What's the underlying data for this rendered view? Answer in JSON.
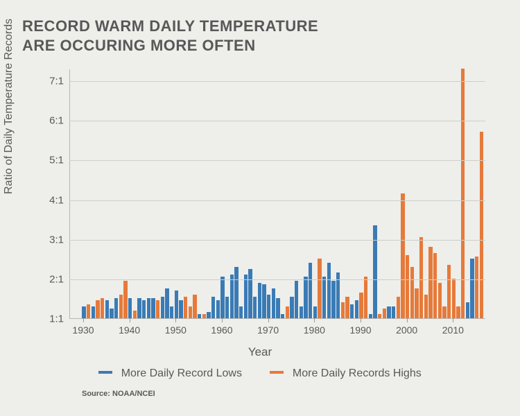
{
  "title_line1": "RECORD WARM DAILY TEMPERATURE",
  "title_line2": "ARE OCCURING MORE OFTEN",
  "ylabel": "Ratio of Daily Temperature Records",
  "xlabel": "Year",
  "source": "Source: NOAA/NCEI",
  "legend": {
    "lows": "More Daily Record Lows",
    "highs": "More Daily Records Highs"
  },
  "chart": {
    "type": "bar",
    "background_color": "#eeeeea",
    "grid_color": "#cfcfc9",
    "axis_color": "#b8b8b2",
    "title_fontsize": 22,
    "label_fontsize": 16,
    "tick_fontsize": 14,
    "x": {
      "min": 1927,
      "max": 2017,
      "ticks": [
        1930,
        1940,
        1950,
        1960,
        1970,
        1980,
        1990,
        2000,
        2010
      ]
    },
    "y": {
      "min": 1,
      "max": 7.3,
      "ticks": [
        1,
        2,
        3,
        4,
        5,
        6,
        7
      ],
      "tick_labels": [
        "1:1",
        "2:1",
        "3:1",
        "4:1",
        "5:1",
        "6:1",
        "7:1"
      ]
    },
    "colors": {
      "lows": "#3a7bb5",
      "highs": "#e67a3a"
    },
    "bar_width_years": 0.78,
    "series": [
      {
        "year": 1930,
        "v": 1.3,
        "kind": "lows"
      },
      {
        "year": 1931,
        "v": 1.35,
        "kind": "highs"
      },
      {
        "year": 1932,
        "v": 1.3,
        "kind": "lows"
      },
      {
        "year": 1933,
        "v": 1.45,
        "kind": "highs"
      },
      {
        "year": 1934,
        "v": 1.5,
        "kind": "highs"
      },
      {
        "year": 1935,
        "v": 1.45,
        "kind": "lows"
      },
      {
        "year": 1936,
        "v": 1.25,
        "kind": "lows"
      },
      {
        "year": 1937,
        "v": 1.5,
        "kind": "lows"
      },
      {
        "year": 1938,
        "v": 1.6,
        "kind": "highs"
      },
      {
        "year": 1939,
        "v": 1.95,
        "kind": "highs"
      },
      {
        "year": 1940,
        "v": 1.5,
        "kind": "lows"
      },
      {
        "year": 1941,
        "v": 1.2,
        "kind": "highs"
      },
      {
        "year": 1942,
        "v": 1.5,
        "kind": "lows"
      },
      {
        "year": 1943,
        "v": 1.45,
        "kind": "lows"
      },
      {
        "year": 1944,
        "v": 1.5,
        "kind": "lows"
      },
      {
        "year": 1945,
        "v": 1.5,
        "kind": "lows"
      },
      {
        "year": 1946,
        "v": 1.45,
        "kind": "highs"
      },
      {
        "year": 1947,
        "v": 1.55,
        "kind": "lows"
      },
      {
        "year": 1948,
        "v": 1.75,
        "kind": "lows"
      },
      {
        "year": 1949,
        "v": 1.3,
        "kind": "lows"
      },
      {
        "year": 1950,
        "v": 1.7,
        "kind": "lows"
      },
      {
        "year": 1951,
        "v": 1.45,
        "kind": "lows"
      },
      {
        "year": 1952,
        "v": 1.55,
        "kind": "highs"
      },
      {
        "year": 1953,
        "v": 1.3,
        "kind": "highs"
      },
      {
        "year": 1954,
        "v": 1.6,
        "kind": "highs"
      },
      {
        "year": 1955,
        "v": 1.1,
        "kind": "lows"
      },
      {
        "year": 1956,
        "v": 1.1,
        "kind": "highs"
      },
      {
        "year": 1957,
        "v": 1.15,
        "kind": "lows"
      },
      {
        "year": 1958,
        "v": 1.55,
        "kind": "lows"
      },
      {
        "year": 1959,
        "v": 1.45,
        "kind": "lows"
      },
      {
        "year": 1960,
        "v": 2.05,
        "kind": "lows"
      },
      {
        "year": 1961,
        "v": 1.55,
        "kind": "lows"
      },
      {
        "year": 1962,
        "v": 2.1,
        "kind": "lows"
      },
      {
        "year": 1963,
        "v": 2.3,
        "kind": "lows"
      },
      {
        "year": 1964,
        "v": 1.3,
        "kind": "lows"
      },
      {
        "year": 1965,
        "v": 2.1,
        "kind": "lows"
      },
      {
        "year": 1966,
        "v": 2.25,
        "kind": "lows"
      },
      {
        "year": 1967,
        "v": 1.55,
        "kind": "lows"
      },
      {
        "year": 1968,
        "v": 1.9,
        "kind": "lows"
      },
      {
        "year": 1969,
        "v": 1.85,
        "kind": "lows"
      },
      {
        "year": 1970,
        "v": 1.6,
        "kind": "lows"
      },
      {
        "year": 1971,
        "v": 1.75,
        "kind": "lows"
      },
      {
        "year": 1972,
        "v": 1.5,
        "kind": "lows"
      },
      {
        "year": 1973,
        "v": 1.1,
        "kind": "lows"
      },
      {
        "year": 1974,
        "v": 1.3,
        "kind": "highs"
      },
      {
        "year": 1975,
        "v": 1.55,
        "kind": "lows"
      },
      {
        "year": 1976,
        "v": 1.95,
        "kind": "lows"
      },
      {
        "year": 1977,
        "v": 1.3,
        "kind": "lows"
      },
      {
        "year": 1978,
        "v": 2.05,
        "kind": "lows"
      },
      {
        "year": 1979,
        "v": 2.4,
        "kind": "lows"
      },
      {
        "year": 1980,
        "v": 1.3,
        "kind": "lows"
      },
      {
        "year": 1981,
        "v": 2.5,
        "kind": "highs"
      },
      {
        "year": 1982,
        "v": 2.05,
        "kind": "lows"
      },
      {
        "year": 1983,
        "v": 2.4,
        "kind": "lows"
      },
      {
        "year": 1984,
        "v": 1.95,
        "kind": "lows"
      },
      {
        "year": 1985,
        "v": 2.15,
        "kind": "lows"
      },
      {
        "year": 1986,
        "v": 1.4,
        "kind": "highs"
      },
      {
        "year": 1987,
        "v": 1.55,
        "kind": "highs"
      },
      {
        "year": 1988,
        "v": 1.35,
        "kind": "lows"
      },
      {
        "year": 1989,
        "v": 1.45,
        "kind": "lows"
      },
      {
        "year": 1990,
        "v": 1.65,
        "kind": "highs"
      },
      {
        "year": 1991,
        "v": 2.05,
        "kind": "highs"
      },
      {
        "year": 1992,
        "v": 1.1,
        "kind": "lows"
      },
      {
        "year": 1993,
        "v": 3.35,
        "kind": "lows"
      },
      {
        "year": 1994,
        "v": 1.1,
        "kind": "highs"
      },
      {
        "year": 1995,
        "v": 1.25,
        "kind": "highs"
      },
      {
        "year": 1996,
        "v": 1.3,
        "kind": "lows"
      },
      {
        "year": 1997,
        "v": 1.3,
        "kind": "lows"
      },
      {
        "year": 1998,
        "v": 1.55,
        "kind": "highs"
      },
      {
        "year": 1999,
        "v": 4.15,
        "kind": "highs"
      },
      {
        "year": 2000,
        "v": 2.6,
        "kind": "highs"
      },
      {
        "year": 2001,
        "v": 2.3,
        "kind": "highs"
      },
      {
        "year": 2002,
        "v": 1.75,
        "kind": "highs"
      },
      {
        "year": 2003,
        "v": 3.05,
        "kind": "highs"
      },
      {
        "year": 2004,
        "v": 1.6,
        "kind": "highs"
      },
      {
        "year": 2005,
        "v": 2.8,
        "kind": "highs"
      },
      {
        "year": 2006,
        "v": 2.65,
        "kind": "highs"
      },
      {
        "year": 2007,
        "v": 1.9,
        "kind": "highs"
      },
      {
        "year": 2008,
        "v": 1.3,
        "kind": "highs"
      },
      {
        "year": 2009,
        "v": 2.35,
        "kind": "highs"
      },
      {
        "year": 2010,
        "v": 2.0,
        "kind": "highs"
      },
      {
        "year": 2011,
        "v": 1.3,
        "kind": "highs"
      },
      {
        "year": 2012,
        "v": 7.3,
        "kind": "highs"
      },
      {
        "year": 2013,
        "v": 1.4,
        "kind": "lows"
      },
      {
        "year": 2014,
        "v": 2.5,
        "kind": "lows"
      },
      {
        "year": 2015,
        "v": 2.55,
        "kind": "highs"
      },
      {
        "year": 2016,
        "v": 5.7,
        "kind": "highs"
      }
    ]
  }
}
